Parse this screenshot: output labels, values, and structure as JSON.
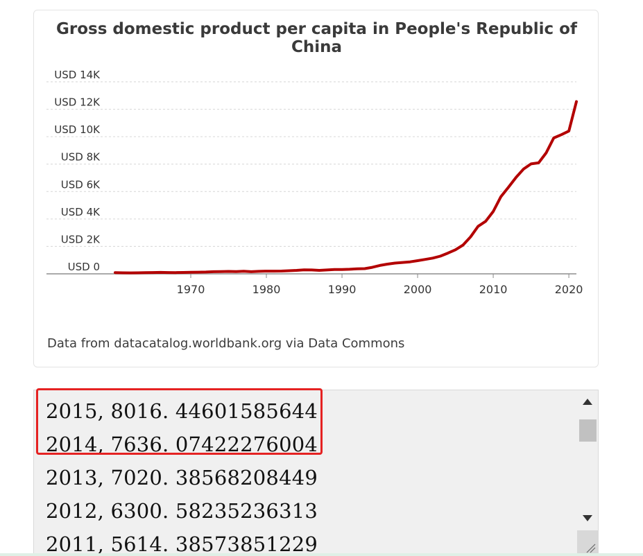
{
  "chart_data": {
    "type": "line",
    "title": "Gross domestic product per capita in People's Republic of China",
    "title_lines": [
      "Gross domestic product per capita in People's Republic of",
      "China"
    ],
    "xlabel": "",
    "ylabel": "",
    "xlim": [
      1960,
      2021
    ],
    "ylim": [
      0,
      14000
    ],
    "x_ticks": [
      1970,
      1980,
      1990,
      2000,
      2010,
      2020
    ],
    "y_ticks": [
      0,
      2000,
      4000,
      6000,
      8000,
      10000,
      12000,
      14000
    ],
    "y_tick_labels": [
      "USD 0",
      "USD 2K",
      "USD 4K",
      "USD 6K",
      "USD 8K",
      "USD 10K",
      "USD 12K",
      "USD 14K"
    ],
    "grid": "horizontal dashed",
    "legend": "none",
    "line_color": "#b30000",
    "series": [
      {
        "x": [
          1960,
          1961,
          1962,
          1963,
          1964,
          1965,
          1966,
          1967,
          1968,
          1969,
          1970,
          1971,
          1972,
          1973,
          1974,
          1975,
          1976,
          1977,
          1978,
          1979,
          1980,
          1981,
          1982,
          1983,
          1984,
          1985,
          1986,
          1987,
          1988,
          1989,
          1990,
          1991,
          1992,
          1993,
          1994,
          1995,
          1996,
          1997,
          1998,
          1999,
          2000,
          2001,
          2002,
          2003,
          2004,
          2005,
          2006,
          2007,
          2008,
          2009,
          2010,
          2011,
          2012,
          2013,
          2014,
          2015,
          2016,
          2017,
          2018,
          2019,
          2020,
          2021
        ],
        "values": [
          90,
          76,
          70,
          74,
          85,
          98,
          104,
          97,
          91,
          100,
          113,
          119,
          132,
          157,
          160,
          178,
          165,
          185,
          156,
          183,
          195,
          197,
          203,
          225,
          251,
          294,
          282,
          252,
          283,
          311,
          318,
          333,
          366,
          377,
          473,
          610,
          709,
          782,
          829,
          873,
          959,
          1053,
          1149,
          1289,
          1509,
          1753,
          2099,
          2694,
          3468,
          3832,
          4550,
          5614,
          6300,
          7020,
          7636,
          8016,
          8094,
          8817,
          9905,
          10144,
          10409,
          12556
        ]
      }
    ],
    "source": "Data from datacatalog.worldbank.org via Data Commons"
  },
  "textarea": {
    "lines": [
      "2015, 8016. 44601585644",
      "2014, 7636. 07422276004",
      "2013, 7020. 38568208449",
      "2012, 6300. 58235236313",
      "2011, 5614. 38573851229"
    ]
  }
}
